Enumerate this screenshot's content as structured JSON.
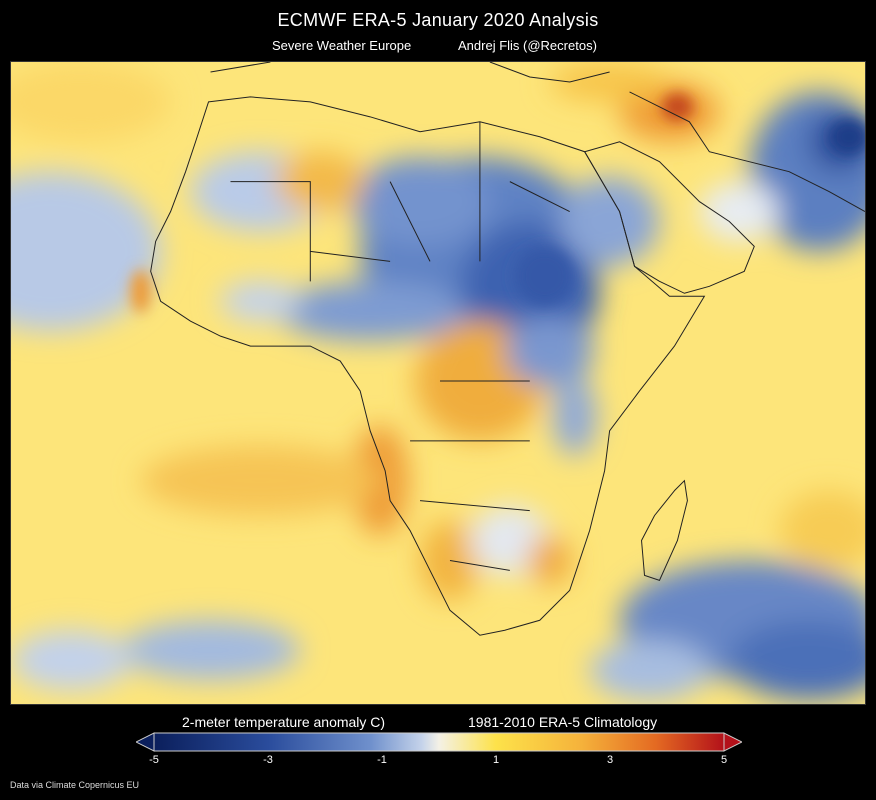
{
  "header": {
    "title": "ECMWF ERA-5   January 2020  Analysis",
    "subtitle_left": "Severe Weather Europe",
    "subtitle_right": "Andrej Flis (@Recretos)"
  },
  "legend": {
    "label_left": "2-meter temperature anomaly C)",
    "label_right": "1981-2010 ERA-5 Climatology",
    "ticks": [
      "-5",
      "-3",
      "-1",
      "1",
      "3",
      "5"
    ],
    "tick_values": [
      -5,
      -3,
      -1,
      1,
      3,
      5
    ],
    "range": [
      -5,
      5
    ],
    "colors": {
      "cold_extreme": "#0b1f5c",
      "cold": "#3f66b3",
      "cool": "#a9bfe3",
      "neutral": "#f4f1e6",
      "warm": "#fde24a",
      "hot": "#e9822b",
      "hot_extreme": "#b3111a"
    }
  },
  "map": {
    "region": "Africa",
    "background_color": "#fde57a",
    "coastline_color": "#222222"
  },
  "footer": {
    "credit": "Data via Climate Copernicus EU"
  }
}
